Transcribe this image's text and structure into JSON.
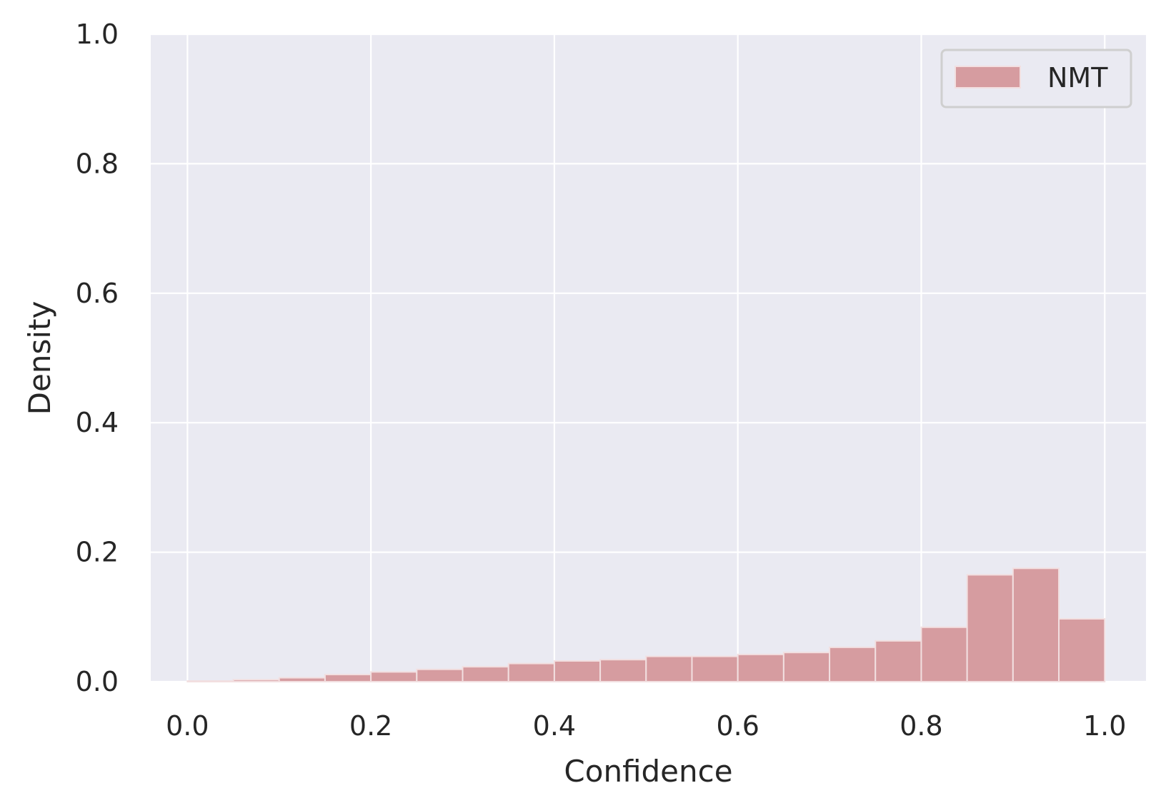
{
  "chart_data": {
    "type": "bar",
    "xlabel": "Confidence",
    "ylabel": "Density",
    "xlim": [
      -0.04,
      1.045
    ],
    "ylim": [
      0.0,
      1.0
    ],
    "xticks": [
      "0.0",
      "0.2",
      "0.4",
      "0.6",
      "0.8",
      "1.0"
    ],
    "yticks": [
      "0.0",
      "0.2",
      "0.4",
      "0.6",
      "0.8",
      "1.0"
    ],
    "grid": true,
    "legend_position": "upper right",
    "bin_width": 0.05,
    "series": [
      {
        "name": "NMT",
        "color": "#d69ca0",
        "bins": [
          {
            "x": 0.0,
            "value": 0.001
          },
          {
            "x": 0.05,
            "value": 0.003
          },
          {
            "x": 0.1,
            "value": 0.006
          },
          {
            "x": 0.15,
            "value": 0.011
          },
          {
            "x": 0.2,
            "value": 0.015
          },
          {
            "x": 0.25,
            "value": 0.019
          },
          {
            "x": 0.3,
            "value": 0.023
          },
          {
            "x": 0.35,
            "value": 0.028
          },
          {
            "x": 0.4,
            "value": 0.032
          },
          {
            "x": 0.45,
            "value": 0.034
          },
          {
            "x": 0.5,
            "value": 0.039
          },
          {
            "x": 0.55,
            "value": 0.039
          },
          {
            "x": 0.6,
            "value": 0.042
          },
          {
            "x": 0.65,
            "value": 0.045
          },
          {
            "x": 0.7,
            "value": 0.053
          },
          {
            "x": 0.75,
            "value": 0.063
          },
          {
            "x": 0.8,
            "value": 0.084
          },
          {
            "x": 0.85,
            "value": 0.165
          },
          {
            "x": 0.9,
            "value": 0.175
          },
          {
            "x": 0.95,
            "value": 0.097
          }
        ]
      }
    ],
    "colors": {
      "plot_background": "#eaeaf2",
      "grid": "#ffffff",
      "bar_edge": "#f2dfe0",
      "text": "#262626"
    }
  }
}
